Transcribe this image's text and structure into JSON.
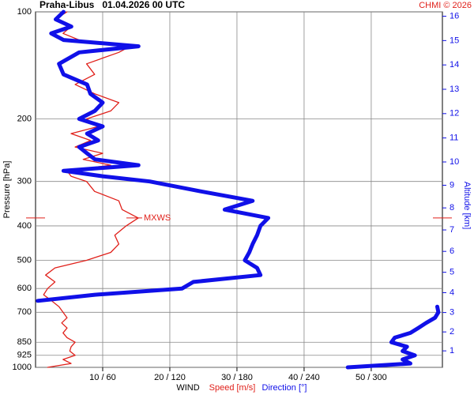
{
  "chart_data": {
    "type": "line",
    "title": "Praha-Libus   01.04.2026 00 UTC",
    "credit": "CHMI © 2026",
    "xlabel": "WIND",
    "ylabel": "Pressure [hPa]",
    "y2label": "Altitude [km]",
    "log_y": true,
    "grid": true,
    "ylim": [
      1000,
      100
    ],
    "yticks": [
      100,
      200,
      300,
      400,
      500,
      600,
      700,
      850,
      925,
      1000
    ],
    "y2ticks": [
      1,
      2,
      3,
      4,
      5,
      6,
      7,
      8,
      9,
      10,
      11,
      12,
      13,
      14,
      15,
      16
    ],
    "xlim": [
      0,
      60.6
    ],
    "x2lim": [
      0,
      363.6
    ],
    "xticks": [
      {
        "value": 10,
        "label": "10 / 60"
      },
      {
        "value": 20,
        "label": "20 / 120"
      },
      {
        "value": 30,
        "label": "30 / 180"
      },
      {
        "value": 40,
        "label": "40 / 240"
      },
      {
        "value": 50,
        "label": "50 / 300"
      }
    ],
    "annotations": [
      {
        "text": "MXWS",
        "pressure": 380,
        "color": "#e0201a"
      }
    ],
    "pressure": [
      1000,
      975,
      950,
      925,
      900,
      875,
      850,
      825,
      800,
      775,
      750,
      725,
      700,
      675,
      650,
      625,
      600,
      575,
      550,
      525,
      500,
      475,
      450,
      425,
      400,
      380,
      360,
      340,
      320,
      300,
      290,
      280,
      270,
      260,
      250,
      240,
      230,
      220,
      210,
      200,
      190,
      180,
      170,
      160,
      150,
      140,
      130,
      125,
      120,
      115,
      110,
      105,
      100
    ],
    "series": [
      {
        "name": "Speed [m/s]",
        "color": "#e0201a",
        "axis": "x",
        "values": [
          1.8,
          5.3,
          4.1,
          5.9,
          5.1,
          5.3,
          5.9,
          4.7,
          4.1,
          4.7,
          3.9,
          4.7,
          4.1,
          3.5,
          2.4,
          1.2,
          1.8,
          2.9,
          1.5,
          2.9,
          7.6,
          11.2,
          12.4,
          11.8,
          13.5,
          15.3,
          12.9,
          12.4,
          8.8,
          7.6,
          5.3,
          4.7,
          11.2,
          7.1,
          10,
          5.9,
          8.2,
          5.3,
          9.4,
          7.6,
          11.2,
          12.4,
          8.8,
          5.9,
          8.8,
          7.6,
          12.4,
          14.1,
          6.5,
          4.1,
          5.3,
          2.9,
          4.7
        ]
      },
      {
        "name": "Direction [°]",
        "color": "#1010e8",
        "axis": "x2",
        "values": [
          279,
          335,
          328,
          339,
          328,
          332,
          318,
          321,
          335,
          342,
          349,
          357,
          360,
          359,
          2,
          53,
          131,
          141,
          201,
          198,
          187,
          191,
          194,
          198,
          201,
          208,
          169,
          194,
          148,
          102,
          60,
          25,
          92,
          53,
          46,
          39,
          56,
          46,
          60,
          39,
          53,
          60,
          49,
          46,
          25,
          21,
          39,
          92,
          25,
          14,
          32,
          18,
          25
        ]
      }
    ]
  }
}
